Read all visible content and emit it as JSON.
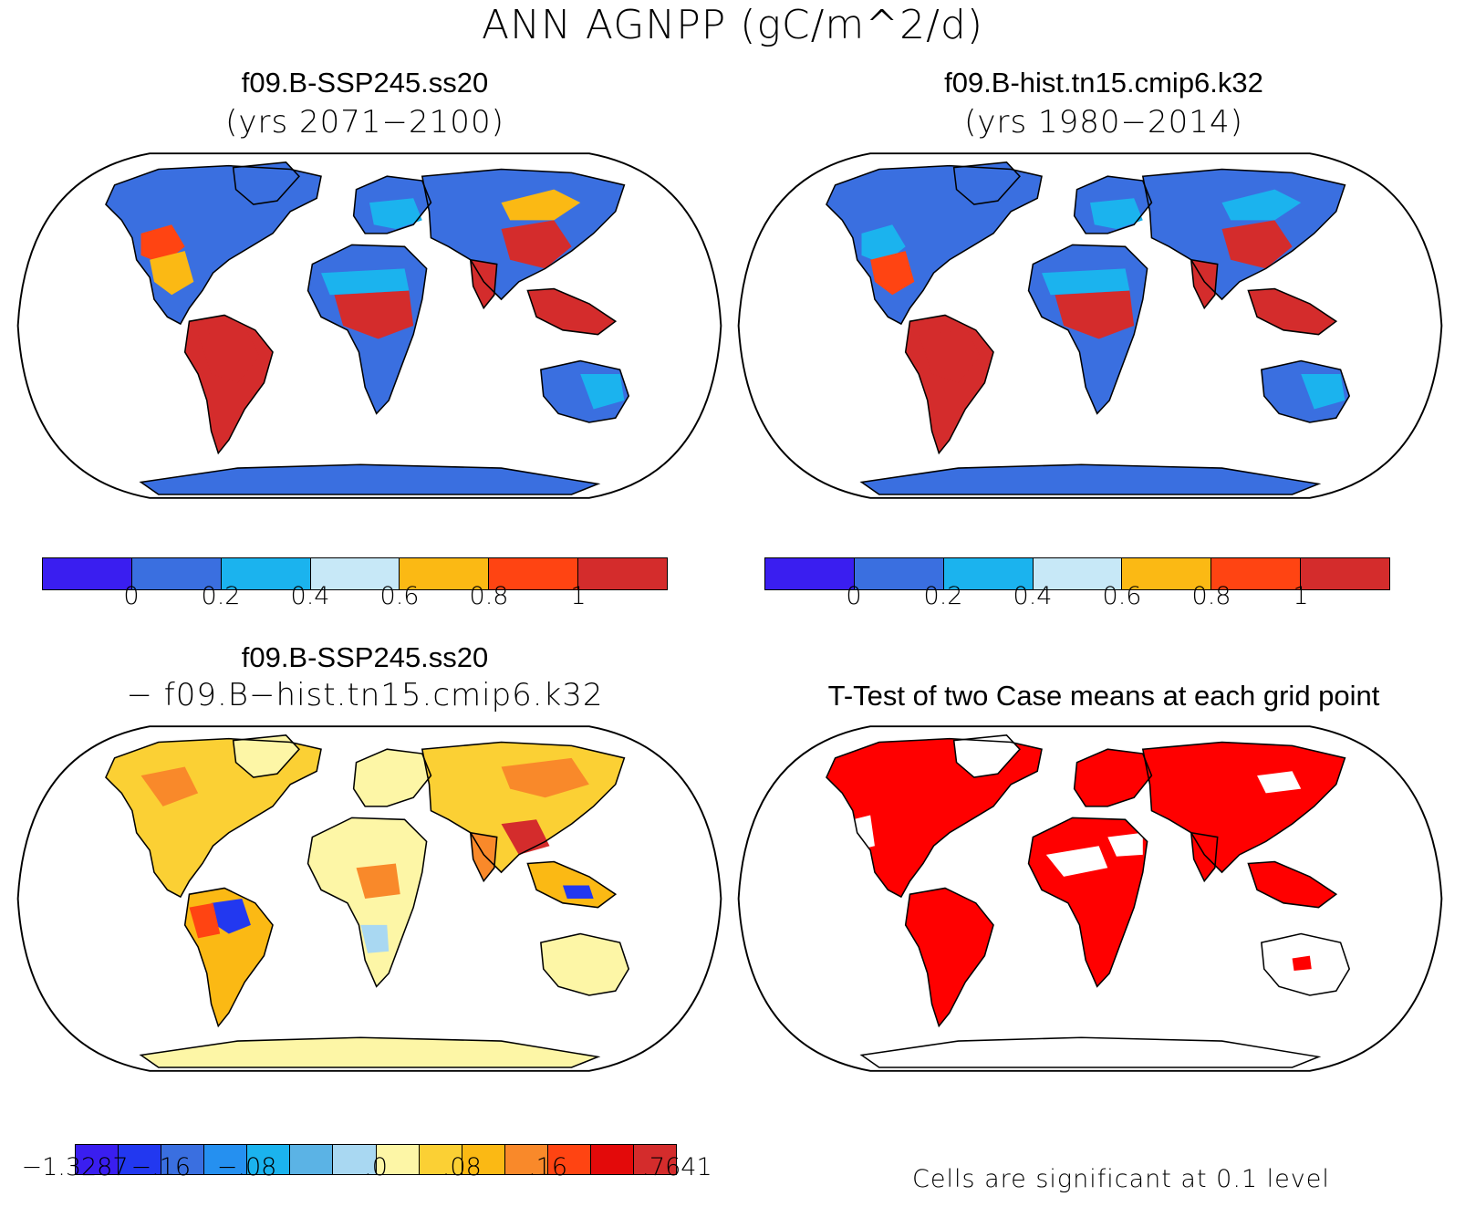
{
  "title": "ANN AGNPP (gC/m^2/d)",
  "panels": {
    "top_left": {
      "title": "f09.B-SSP245.ss20",
      "subtitle": "(yrs 2071−2100)"
    },
    "top_right": {
      "title": "f09.B-hist.tn15.cmip6.k32",
      "subtitle": "(yrs 1980−2014)"
    },
    "bottom_left": {
      "title": "f09.B-SSP245.ss20",
      "subtitle": "− f09.B−hist.tn15.cmip6.k32"
    },
    "bottom_right": {
      "title": "T-Test of two Case means at each grid point",
      "footnote": "Cells are significant at 0.1 level"
    }
  },
  "colorbars": {
    "abs": {
      "colors": [
        "#3a1ef0",
        "#3a6fe0",
        "#1bb3ee",
        "#c7e8f7",
        "#fbb914",
        "#ff4412",
        "#d42c2c"
      ],
      "labels": [
        "0",
        "0.2",
        "0.4",
        "0.6",
        "0.8",
        "1"
      ]
    },
    "diff": {
      "colors": [
        "#3a1ef0",
        "#2238f0",
        "#3a6fe0",
        "#2590f0",
        "#1bb3ee",
        "#5bb3e5",
        "#a9d8f2",
        "#fdf6a6",
        "#fbd034",
        "#fbb914",
        "#f9892a",
        "#ff4412",
        "#e30a0a",
        "#d42c2c"
      ],
      "labels": [
        "−1.3287",
        "−.16",
        "−.08",
        ".0",
        ".08",
        ".16",
        ".7641"
      ]
    }
  },
  "chart_data": [
    {
      "type": "heatmap",
      "title": "f09.B-SSP245.ss20",
      "subtitle": "(yrs 2071−2100)",
      "levels": [
        0,
        0.2,
        0.4,
        0.6,
        0.8,
        1
      ],
      "units": "gC/m^2/d"
    },
    {
      "type": "heatmap",
      "title": "f09.B-hist.tn15.cmip6.k32",
      "subtitle": "(yrs 1980−2014)",
      "levels": [
        0,
        0.2,
        0.4,
        0.6,
        0.8,
        1
      ],
      "units": "gC/m^2/d"
    },
    {
      "type": "heatmap",
      "title": "f09.B-SSP245.ss20",
      "subtitle": "− f09.B−hist.tn15.cmip6.k32",
      "levels": [
        -0.16,
        -0.08,
        0.0,
        0.08,
        0.16
      ],
      "min": -1.3287,
      "max": 0.7641
    },
    {
      "type": "heatmap",
      "title": "T-Test of two Case means at each grid point",
      "note": "Cells are significant at 0.1 level",
      "significance_color": "#ff0000"
    }
  ]
}
